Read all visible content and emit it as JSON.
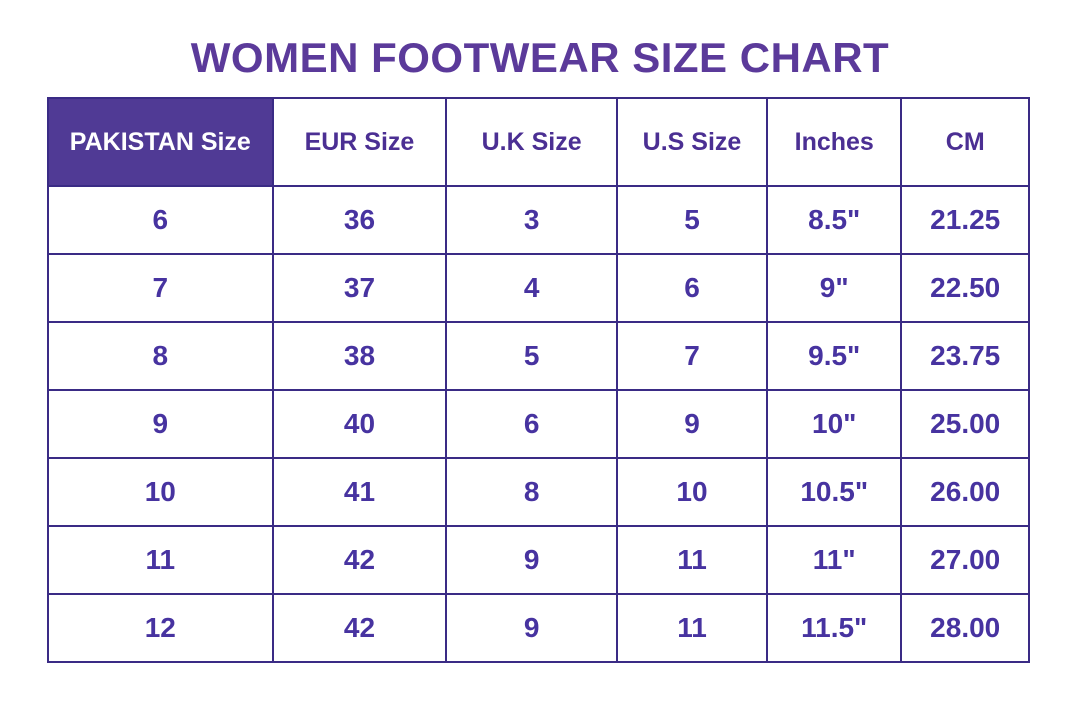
{
  "page": {
    "title": "WOMEN FOOTWEAR SIZE CHART"
  },
  "colors": {
    "title_text": "#5b3a9a",
    "header_bg": "#503a95",
    "header_bg_text": "#ffffff",
    "header_text": "#4b2f93",
    "cell_text": "#4733a0",
    "border": "#3a2b85",
    "background": "#ffffff"
  },
  "chart_data": {
    "type": "table",
    "title": "WOMEN FOOTWEAR SIZE CHART",
    "columns": [
      "PAKISTAN Size",
      "EUR Size",
      "U.K Size",
      "U.S Size",
      "Inches",
      "CM"
    ],
    "highlighted_column": "PAKISTAN Size",
    "rows": [
      [
        "6",
        "36",
        "3",
        "5",
        "8.5\"",
        "21.25"
      ],
      [
        "7",
        "37",
        "4",
        "6",
        "9\"",
        "22.50"
      ],
      [
        "8",
        "38",
        "5",
        "7",
        "9.5\"",
        "23.75"
      ],
      [
        "9",
        "40",
        "6",
        "9",
        "10\"",
        "25.00"
      ],
      [
        "10",
        "41",
        "8",
        "10",
        "10.5\"",
        "26.00"
      ],
      [
        "11",
        "42",
        "9",
        "11",
        "11\"",
        "27.00"
      ],
      [
        "12",
        "42",
        "9",
        "11",
        "11.5\"",
        "28.00"
      ]
    ]
  }
}
